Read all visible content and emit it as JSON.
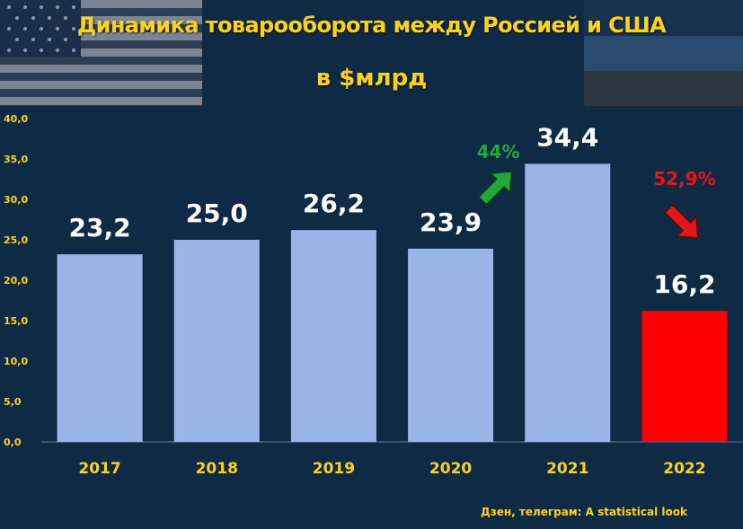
{
  "header": {
    "title": "Динамика товарооборота между Россией и США",
    "subtitle": "в $млрд"
  },
  "source": "Дзен, телеграм: A statistical look",
  "colors": {
    "background": "#0f2a44",
    "bar": "#9ab6e8",
    "highlight_bar": "#ff0000",
    "accent_text": "#ffd21a",
    "up_color": "#22a83a",
    "down_color": "#e01818"
  },
  "icons": [
    "us-flag-icon",
    "russia-flag-icon",
    "up-arrow-icon",
    "down-arrow-icon"
  ],
  "chart_data": {
    "type": "bar",
    "title": "Динамика товарооборота между Россией и США",
    "subtitle": "в $млрд",
    "categories": [
      "2017",
      "2018",
      "2019",
      "2020",
      "2021",
      "2022"
    ],
    "values": [
      23.2,
      25.0,
      26.2,
      23.9,
      34.4,
      16.2
    ],
    "value_labels": [
      "23,2",
      "25,0",
      "26,2",
      "23,9",
      "34,4",
      "16,2"
    ],
    "bar_colors": [
      "#9ab6e8",
      "#9ab6e8",
      "#9ab6e8",
      "#9ab6e8",
      "#9ab6e8",
      "#ff0000"
    ],
    "ylim": [
      0,
      40
    ],
    "yticks": [
      0,
      5,
      10,
      15,
      20,
      25,
      30,
      35,
      40
    ],
    "ytick_labels": [
      "0,0",
      "5,0",
      "10,0",
      "15,0",
      "20,0",
      "25,0",
      "30,0",
      "35,0",
      "40,0"
    ],
    "grid": false,
    "annotations": [
      {
        "text": "44%",
        "direction": "up",
        "color": "#22a83a"
      },
      {
        "text": "52,9%",
        "direction": "down",
        "color": "#e01818"
      }
    ]
  }
}
